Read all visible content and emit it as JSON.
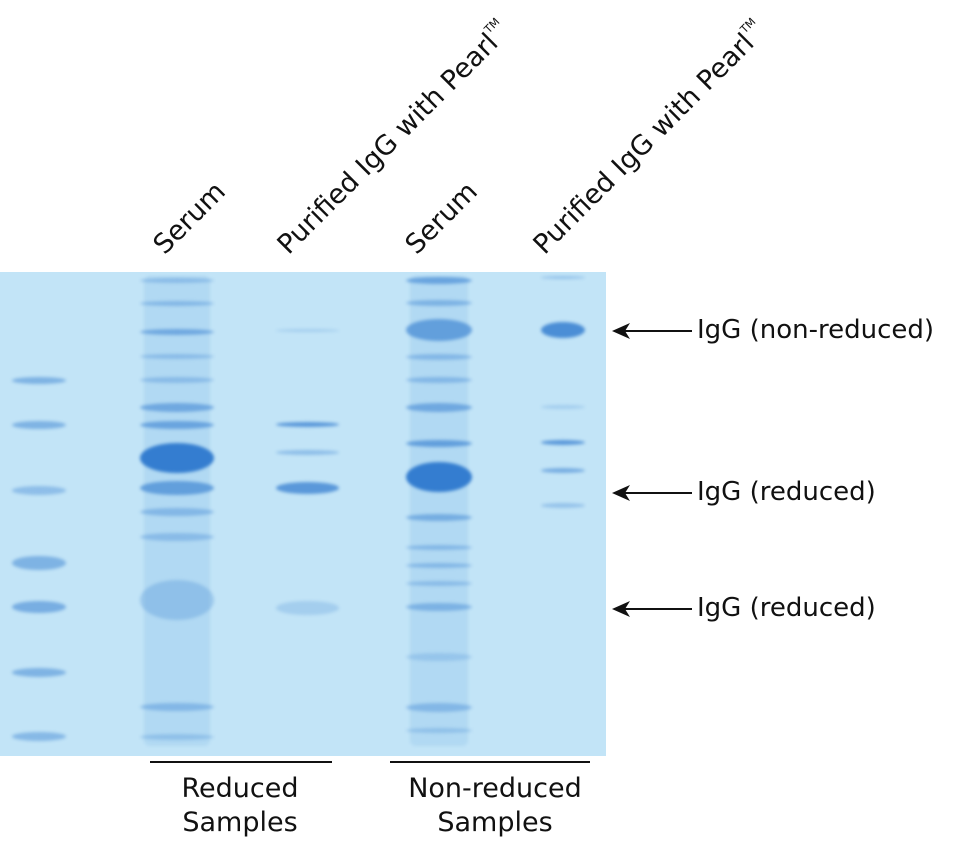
{
  "lanes": [
    {
      "label": "Serum",
      "tm": ""
    },
    {
      "label": "Purified IgG with Pearl",
      "tm": "TM"
    },
    {
      "label": "Serum",
      "tm": ""
    },
    {
      "label": "Purified IgG with Pearl",
      "tm": "TM"
    }
  ],
  "annotations": [
    {
      "label": "IgG (non-reduced)",
      "icon": "arrow-left-icon"
    },
    {
      "label": "IgG (reduced)",
      "icon": "arrow-left-icon"
    },
    {
      "label": "IgG (reduced)",
      "icon": "arrow-left-icon"
    }
  ],
  "groups": [
    {
      "line1": "Reduced",
      "line2": "Samples"
    },
    {
      "line1": "Non-reduced",
      "line2": "Samples"
    }
  ],
  "colors": {
    "gel_background": "#c2e4f7",
    "band": "#3d8ad6",
    "text": "#111111"
  }
}
